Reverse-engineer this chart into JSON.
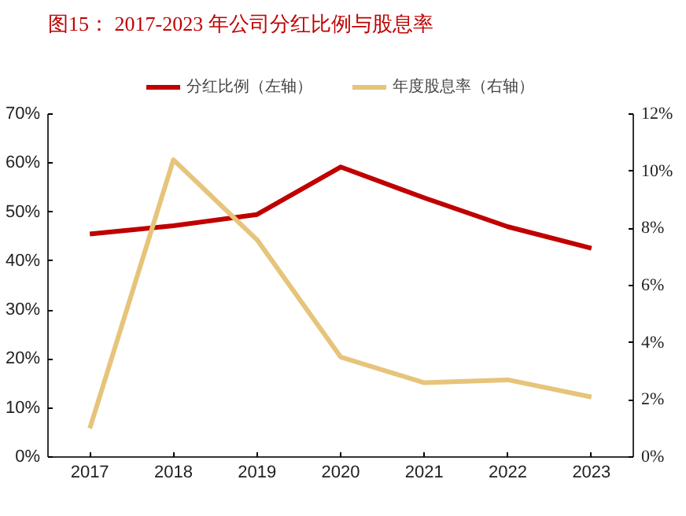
{
  "chart_data": {
    "type": "line",
    "title": "图15：  2017-2023 年公司分红比例与股息率",
    "categories": [
      "2017",
      "2018",
      "2019",
      "2020",
      "2021",
      "2022",
      "2023"
    ],
    "series": [
      {
        "name": "分红比例（左轴）",
        "color": "#c00000",
        "values": [
          45.5,
          47.2,
          49.5,
          59.2,
          52.9,
          47.0,
          42.6
        ]
      },
      {
        "name": "年度股息率（右轴）",
        "color": "#e6c47a",
        "axis": "y2",
        "values": [
          1.0,
          10.4,
          7.6,
          3.5,
          2.6,
          2.7,
          2.1
        ]
      }
    ],
    "ylim": [
      0,
      70
    ],
    "yticks": [
      {
        "value": 0,
        "label": "0%"
      },
      {
        "value": 10,
        "label": "10%"
      },
      {
        "value": 20,
        "label": "20%"
      },
      {
        "value": 30,
        "label": "30%"
      },
      {
        "value": 40,
        "label": "40%"
      },
      {
        "value": 50,
        "label": "50%"
      },
      {
        "value": 60,
        "label": "60%"
      },
      {
        "value": 70,
        "label": "70%"
      }
    ],
    "y2lim": [
      0,
      12
    ],
    "y2ticks": [
      {
        "value": 0,
        "label": "0%"
      },
      {
        "value": 2,
        "label": "2%"
      },
      {
        "value": 4,
        "label": "4%"
      },
      {
        "value": 6,
        "label": "6%"
      },
      {
        "value": 8,
        "label": "8%"
      },
      {
        "value": 10,
        "label": "10%"
      },
      {
        "value": 12,
        "label": "12%"
      }
    ],
    "legend": "top",
    "grid": false
  }
}
